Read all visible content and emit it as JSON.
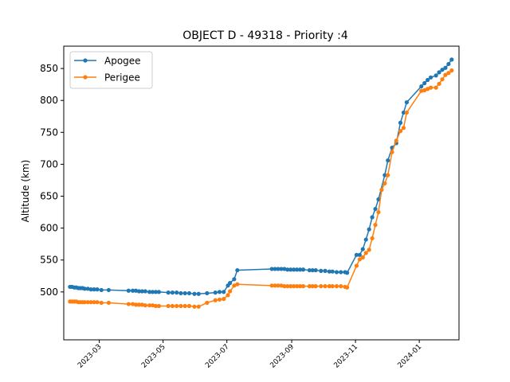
{
  "chart_data": {
    "type": "line",
    "title": "OBJECT D - 49318 - Priority :4",
    "xlabel": "",
    "ylabel": "Altitude (km)",
    "x_axis_type": "date",
    "xlim": [
      "2023-01-26",
      "2024-02-08"
    ],
    "ylim": [
      425,
      885
    ],
    "x_ticks": [
      "2023-03-01",
      "2023-05-01",
      "2023-07-01",
      "2023-09-01",
      "2023-11-01",
      "2024-01-01"
    ],
    "x_tick_labels": [
      "2023-03",
      "2023-05",
      "2023-07",
      "2023-09",
      "2023-11",
      "2024-01"
    ],
    "y_ticks": [
      500,
      550,
      600,
      650,
      700,
      750,
      800,
      850
    ],
    "y_tick_labels": [
      "500",
      "550",
      "600",
      "650",
      "700",
      "750",
      "800",
      "850"
    ],
    "grid": false,
    "legend_position": "top-left",
    "series": [
      {
        "name": "Apogee",
        "color": "#1f77b4",
        "points": [
          [
            "2023-02-01",
            508
          ],
          [
            "2023-02-03",
            508
          ],
          [
            "2023-02-05",
            507
          ],
          [
            "2023-02-07",
            507
          ],
          [
            "2023-02-09",
            506
          ],
          [
            "2023-02-11",
            506
          ],
          [
            "2023-02-13",
            506
          ],
          [
            "2023-02-15",
            505
          ],
          [
            "2023-02-18",
            505
          ],
          [
            "2023-02-21",
            504
          ],
          [
            "2023-02-24",
            504
          ],
          [
            "2023-02-27",
            504
          ],
          [
            "2023-03-03",
            503
          ],
          [
            "2023-03-10",
            503
          ],
          [
            "2023-03-29",
            502
          ],
          [
            "2023-04-02",
            502
          ],
          [
            "2023-04-05",
            502
          ],
          [
            "2023-04-08",
            501
          ],
          [
            "2023-04-11",
            501
          ],
          [
            "2023-04-14",
            501
          ],
          [
            "2023-04-18",
            500
          ],
          [
            "2023-04-21",
            500
          ],
          [
            "2023-04-24",
            500
          ],
          [
            "2023-04-27",
            500
          ],
          [
            "2023-05-06",
            499
          ],
          [
            "2023-05-10",
            499
          ],
          [
            "2023-05-14",
            499
          ],
          [
            "2023-05-18",
            498
          ],
          [
            "2023-05-22",
            498
          ],
          [
            "2023-05-26",
            498
          ],
          [
            "2023-05-31",
            497
          ],
          [
            "2023-06-04",
            497
          ],
          [
            "2023-06-12",
            498
          ],
          [
            "2023-06-20",
            499
          ],
          [
            "2023-06-24",
            500
          ],
          [
            "2023-06-28",
            500
          ],
          [
            "2023-07-02",
            510
          ],
          [
            "2023-07-04",
            514
          ],
          [
            "2023-07-08",
            520
          ],
          [
            "2023-07-11",
            534
          ],
          [
            "2023-08-13",
            536
          ],
          [
            "2023-08-16",
            536
          ],
          [
            "2023-08-19",
            536
          ],
          [
            "2023-08-22",
            536
          ],
          [
            "2023-08-25",
            536
          ],
          [
            "2023-08-28",
            535
          ],
          [
            "2023-08-31",
            535
          ],
          [
            "2023-09-03",
            535
          ],
          [
            "2023-09-06",
            535
          ],
          [
            "2023-09-09",
            535
          ],
          [
            "2023-09-12",
            535
          ],
          [
            "2023-09-18",
            534
          ],
          [
            "2023-09-21",
            534
          ],
          [
            "2023-09-24",
            534
          ],
          [
            "2023-09-29",
            533
          ],
          [
            "2023-10-03",
            533
          ],
          [
            "2023-10-07",
            532
          ],
          [
            "2023-10-10",
            532
          ],
          [
            "2023-10-14",
            531
          ],
          [
            "2023-10-18",
            531
          ],
          [
            "2023-10-22",
            531
          ],
          [
            "2023-10-24",
            530
          ],
          [
            "2023-11-02",
            558
          ],
          [
            "2023-11-05",
            558
          ],
          [
            "2023-11-08",
            567
          ],
          [
            "2023-11-11",
            582
          ],
          [
            "2023-11-14",
            598
          ],
          [
            "2023-11-17",
            617
          ],
          [
            "2023-11-20",
            630
          ],
          [
            "2023-11-23",
            645
          ],
          [
            "2023-11-29",
            683
          ],
          [
            "2023-12-02",
            706
          ],
          [
            "2023-12-06",
            726
          ],
          [
            "2023-12-10",
            733
          ],
          [
            "2023-12-14",
            765
          ],
          [
            "2023-12-17",
            781
          ],
          [
            "2023-12-20",
            797
          ],
          [
            "2024-01-03",
            822
          ],
          [
            "2024-01-06",
            827
          ],
          [
            "2024-01-09",
            832
          ],
          [
            "2024-01-12",
            836
          ],
          [
            "2024-01-17",
            839
          ],
          [
            "2024-01-20",
            844
          ],
          [
            "2024-01-23",
            848
          ],
          [
            "2024-01-26",
            851
          ],
          [
            "2024-01-29",
            857
          ],
          [
            "2024-02-01",
            864
          ]
        ]
      },
      {
        "name": "Perigee",
        "color": "#ff7f0e",
        "points": [
          [
            "2023-02-01",
            485
          ],
          [
            "2023-02-03",
            485
          ],
          [
            "2023-02-05",
            485
          ],
          [
            "2023-02-07",
            485
          ],
          [
            "2023-02-09",
            484
          ],
          [
            "2023-02-11",
            484
          ],
          [
            "2023-02-13",
            484
          ],
          [
            "2023-02-15",
            484
          ],
          [
            "2023-02-18",
            484
          ],
          [
            "2023-02-21",
            484
          ],
          [
            "2023-02-24",
            484
          ],
          [
            "2023-02-27",
            484
          ],
          [
            "2023-03-03",
            483
          ],
          [
            "2023-03-10",
            483
          ],
          [
            "2023-03-29",
            481
          ],
          [
            "2023-04-02",
            481
          ],
          [
            "2023-04-05",
            480
          ],
          [
            "2023-04-08",
            480
          ],
          [
            "2023-04-11",
            480
          ],
          [
            "2023-04-14",
            479
          ],
          [
            "2023-04-18",
            479
          ],
          [
            "2023-04-21",
            479
          ],
          [
            "2023-04-24",
            478
          ],
          [
            "2023-04-27",
            478
          ],
          [
            "2023-05-06",
            478
          ],
          [
            "2023-05-10",
            478
          ],
          [
            "2023-05-14",
            478
          ],
          [
            "2023-05-18",
            478
          ],
          [
            "2023-05-22",
            478
          ],
          [
            "2023-05-26",
            478
          ],
          [
            "2023-05-31",
            477
          ],
          [
            "2023-06-04",
            477
          ],
          [
            "2023-06-12",
            483
          ],
          [
            "2023-06-20",
            487
          ],
          [
            "2023-06-24",
            488
          ],
          [
            "2023-06-28",
            489
          ],
          [
            "2023-07-02",
            495
          ],
          [
            "2023-07-04",
            501
          ],
          [
            "2023-07-08",
            510
          ],
          [
            "2023-07-11",
            512
          ],
          [
            "2023-08-13",
            510
          ],
          [
            "2023-08-16",
            510
          ],
          [
            "2023-08-19",
            510
          ],
          [
            "2023-08-22",
            510
          ],
          [
            "2023-08-25",
            509
          ],
          [
            "2023-08-28",
            509
          ],
          [
            "2023-08-31",
            509
          ],
          [
            "2023-09-03",
            509
          ],
          [
            "2023-09-06",
            509
          ],
          [
            "2023-09-09",
            509
          ],
          [
            "2023-09-12",
            509
          ],
          [
            "2023-09-18",
            509
          ],
          [
            "2023-09-21",
            509
          ],
          [
            "2023-09-24",
            509
          ],
          [
            "2023-09-29",
            509
          ],
          [
            "2023-10-03",
            509
          ],
          [
            "2023-10-07",
            509
          ],
          [
            "2023-10-10",
            509
          ],
          [
            "2023-10-14",
            509
          ],
          [
            "2023-10-18",
            509
          ],
          [
            "2023-10-22",
            508
          ],
          [
            "2023-10-24",
            507
          ],
          [
            "2023-11-02",
            541
          ],
          [
            "2023-11-05",
            551
          ],
          [
            "2023-11-08",
            554
          ],
          [
            "2023-11-11",
            561
          ],
          [
            "2023-11-14",
            566
          ],
          [
            "2023-11-17",
            584
          ],
          [
            "2023-11-20",
            605
          ],
          [
            "2023-11-23",
            625
          ],
          [
            "2023-11-26",
            660
          ],
          [
            "2023-11-29",
            670
          ],
          [
            "2023-12-02",
            683
          ],
          [
            "2023-12-06",
            719
          ],
          [
            "2023-12-10",
            737
          ],
          [
            "2023-12-14",
            752
          ],
          [
            "2023-12-17",
            757
          ],
          [
            "2023-12-20",
            781
          ],
          [
            "2024-01-03",
            815
          ],
          [
            "2024-01-06",
            816
          ],
          [
            "2024-01-09",
            818
          ],
          [
            "2024-01-12",
            820
          ],
          [
            "2024-01-17",
            820
          ],
          [
            "2024-01-20",
            826
          ],
          [
            "2024-01-23",
            833
          ],
          [
            "2024-01-26",
            840
          ],
          [
            "2024-01-29",
            843
          ],
          [
            "2024-02-01",
            847
          ]
        ]
      }
    ]
  }
}
